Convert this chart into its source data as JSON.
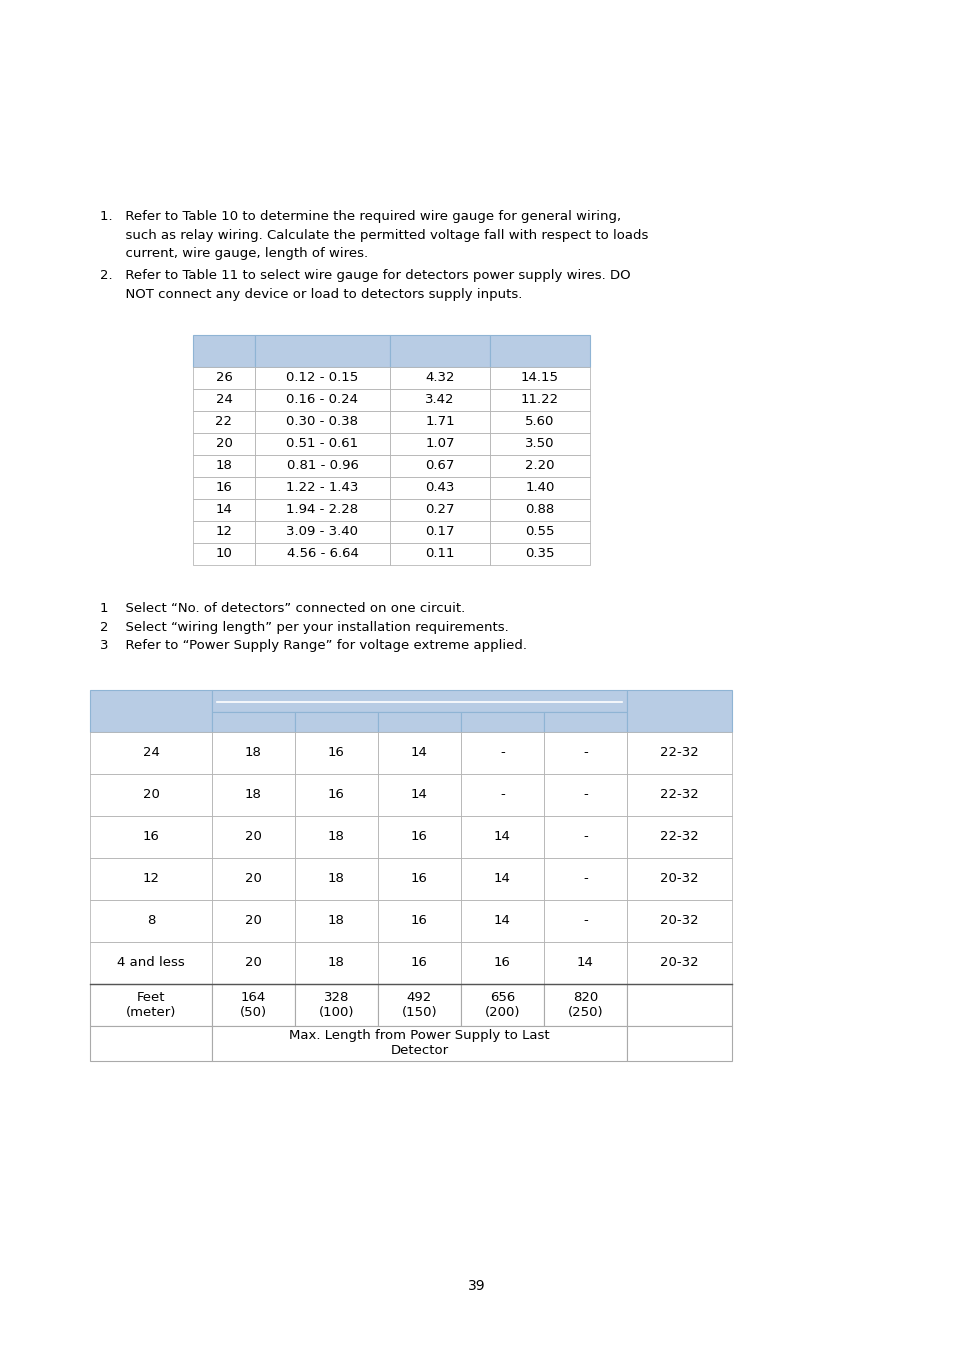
{
  "bg_color": "#ffffff",
  "text_color": "#000000",
  "header_bg": "#b8cce4",
  "header_edge": "#8fb4d4",
  "data_edge": "#aaaaaa",
  "intro1_lines": [
    "1.   Refer to Table 10 to determine the required wire gauge for general wiring,",
    "      such as relay wiring. Calculate the permitted voltage fall with respect to loads",
    "      current, wire gauge, length of wires."
  ],
  "intro2_lines": [
    "2.   Refer to Table 11 to select wire gauge for detectors power supply wires. DO",
    "      NOT connect any device or load to detectors supply inputs."
  ],
  "table1_rows": [
    [
      "26",
      "0.12 - 0.15",
      "4.32",
      "14.15"
    ],
    [
      "24",
      "0.16 - 0.24",
      "3.42",
      "11.22"
    ],
    [
      "22",
      "0.30 - 0.38",
      "1.71",
      "5.60"
    ],
    [
      "20",
      "0.51 - 0.61",
      "1.07",
      "3.50"
    ],
    [
      "18",
      "0.81 - 0.96",
      "0.67",
      "2.20"
    ],
    [
      "16",
      "1.22 - 1.43",
      "0.43",
      "1.40"
    ],
    [
      "14",
      "1.94 - 2.28",
      "0.27",
      "0.88"
    ],
    [
      "12",
      "3.09 - 3.40",
      "0.17",
      "0.55"
    ],
    [
      "10",
      "4.56 - 6.64",
      "0.11",
      "0.35"
    ]
  ],
  "instructions2": [
    "1    Select “No. of detectors” connected on one circuit.",
    "2    Select “wiring length” per your installation requirements.",
    "3    Refer to “Power Supply Range” for voltage extreme applied."
  ],
  "table2_data_rows": [
    [
      "24",
      "18",
      "16",
      "14",
      "-",
      "-",
      "22-32"
    ],
    [
      "20",
      "18",
      "16",
      "14",
      "-",
      "-",
      "22-32"
    ],
    [
      "16",
      "20",
      "18",
      "16",
      "14",
      "-",
      "22-32"
    ],
    [
      "12",
      "20",
      "18",
      "16",
      "14",
      "-",
      "20-32"
    ],
    [
      "8",
      "20",
      "18",
      "16",
      "14",
      "-",
      "20-32"
    ],
    [
      "4 and less",
      "20",
      "18",
      "16",
      "16",
      "14",
      "20-32"
    ]
  ],
  "feet_vals": [
    "164\n(50)",
    "328\n(100)",
    "492\n(150)",
    "656\n(200)",
    "820\n(250)"
  ],
  "page_number": "39",
  "fig_w": 9.54,
  "fig_h": 13.51,
  "dpi": 100
}
